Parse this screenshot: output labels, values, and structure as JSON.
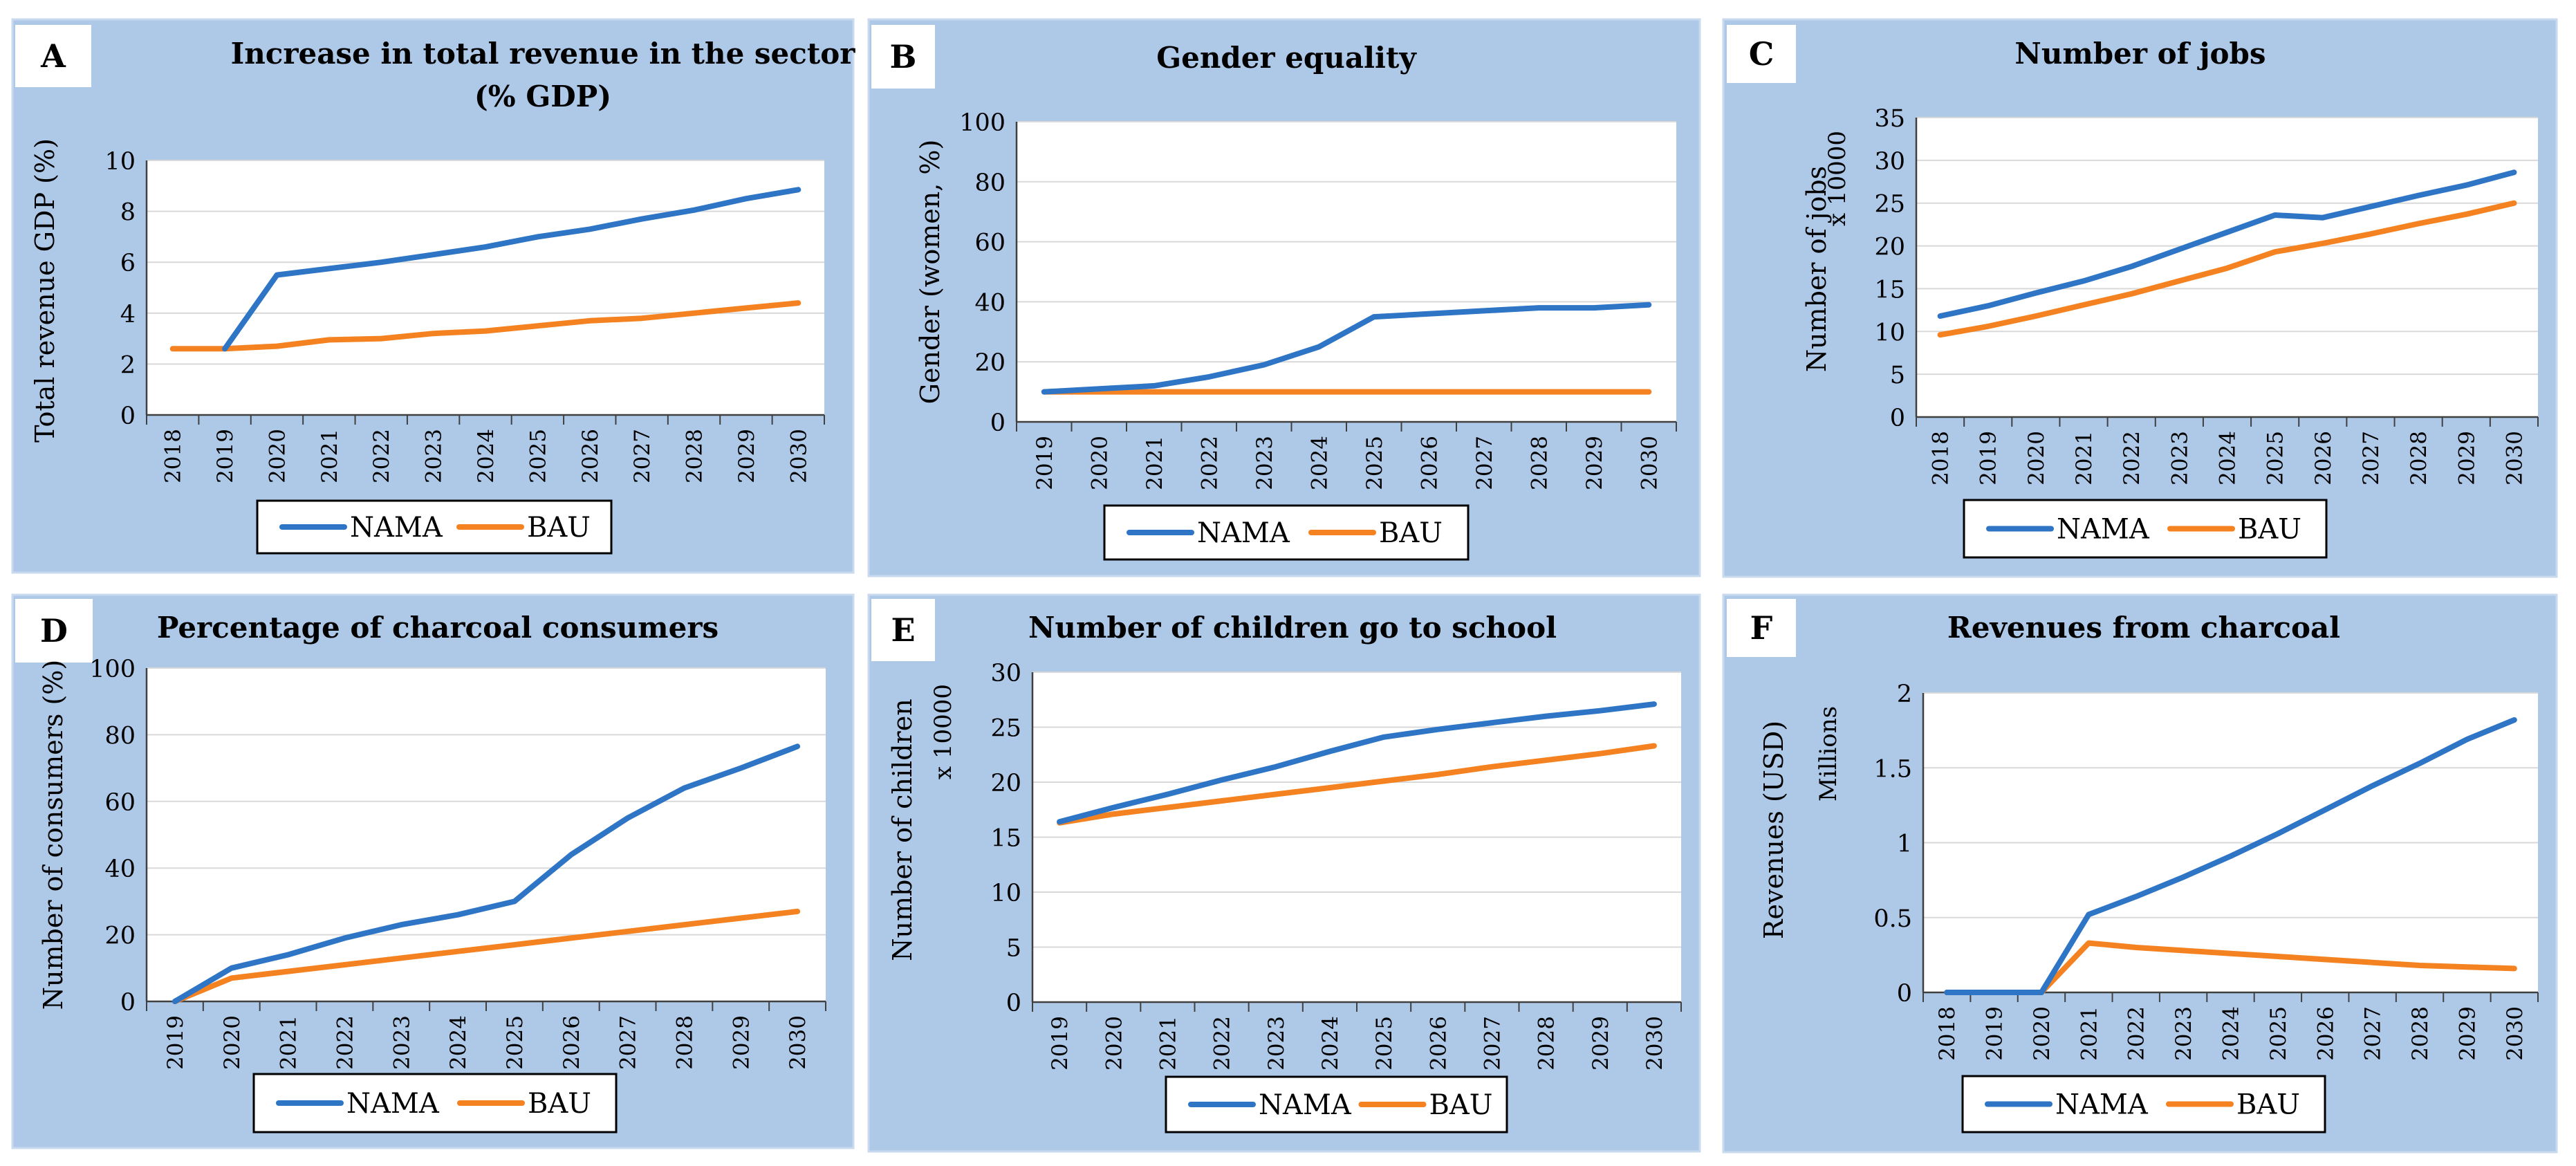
{
  "legend_labels": [
    "NAMA",
    "BAU"
  ],
  "colors": {
    "NAMA": "#2E75C6",
    "BAU": "#F58220",
    "panel_bg": "#AEC8E8",
    "plot_bg": "#FFFFFF",
    "grid": "#D9D9D9",
    "axis": "#404040",
    "text": "#000000"
  },
  "chart_data": [
    {
      "type": "line",
      "panel_letter": "A",
      "title_lines": [
        "Increase in total revenue in the sector",
        "(% GDP)"
      ],
      "ylabel": "Total revenue GDP (%)",
      "ylabel_unit": "",
      "ylim": [
        0,
        10
      ],
      "yticks": [
        0,
        2,
        4,
        6,
        8,
        10
      ],
      "x": [
        "2018",
        "2019",
        "2020",
        "2021",
        "2022",
        "2023",
        "2024",
        "2025",
        "2026",
        "2027",
        "2028",
        "2029",
        "2030"
      ],
      "series": [
        {
          "name": "NAMA",
          "values": [
            null,
            2.6,
            5.5,
            5.75,
            6.0,
            6.3,
            6.6,
            7.0,
            7.3,
            7.7,
            8.05,
            8.5,
            8.85
          ]
        },
        {
          "name": "BAU",
          "values": [
            2.6,
            2.6,
            2.7,
            2.95,
            3.0,
            3.2,
            3.3,
            3.5,
            3.7,
            3.8,
            4.0,
            4.2,
            4.4
          ]
        }
      ]
    },
    {
      "type": "line",
      "panel_letter": "B",
      "title_lines": [
        "Gender equality"
      ],
      "ylabel": "Gender (women, %)",
      "ylabel_unit": "",
      "ylim": [
        0,
        100
      ],
      "yticks": [
        0,
        20,
        40,
        60,
        80,
        100
      ],
      "x": [
        "2019",
        "2020",
        "2021",
        "2022",
        "2023",
        "2024",
        "2025",
        "2026",
        "2027",
        "2028",
        "2029",
        "2030"
      ],
      "series": [
        {
          "name": "NAMA",
          "values": [
            10,
            11,
            12,
            15,
            19,
            25,
            35,
            36,
            37,
            38,
            38,
            39
          ]
        },
        {
          "name": "BAU",
          "values": [
            10,
            10,
            10,
            10,
            10,
            10,
            10,
            10,
            10,
            10,
            10,
            10
          ]
        }
      ]
    },
    {
      "type": "line",
      "panel_letter": "C",
      "title_lines": [
        "Number of jobs"
      ],
      "ylabel": "Number of jobs",
      "ylabel_unit": "x 10000",
      "ylim": [
        0,
        35
      ],
      "yticks": [
        0,
        5,
        10,
        15,
        20,
        25,
        30,
        35
      ],
      "x": [
        "2018",
        "2019",
        "2020",
        "2021",
        "2022",
        "2023",
        "2024",
        "2025",
        "2026",
        "2027",
        "2028",
        "2029",
        "2030"
      ],
      "series": [
        {
          "name": "NAMA",
          "values": [
            11.8,
            13.0,
            14.5,
            15.9,
            17.6,
            19.6,
            21.6,
            23.6,
            23.3,
            24.6,
            25.9,
            27.1,
            28.6
          ]
        },
        {
          "name": "BAU",
          "values": [
            9.6,
            10.6,
            11.8,
            13.1,
            14.4,
            15.9,
            17.4,
            19.3,
            20.3,
            21.4,
            22.6,
            23.7,
            25.0
          ]
        }
      ]
    },
    {
      "type": "line",
      "panel_letter": "D",
      "title_lines": [
        "Percentage of charcoal consumers"
      ],
      "ylabel": "Number of consumers (%)",
      "ylabel_unit": "",
      "ylim": [
        0,
        100
      ],
      "yticks": [
        0,
        20,
        40,
        60,
        80,
        100
      ],
      "x": [
        "2019",
        "2020",
        "2021",
        "2022",
        "2023",
        "2024",
        "2025",
        "2026",
        "2027",
        "2028",
        "2029",
        "2030"
      ],
      "series": [
        {
          "name": "NAMA",
          "values": [
            0,
            10,
            14,
            19,
            23,
            26,
            30,
            44,
            55,
            64,
            70,
            76.5
          ]
        },
        {
          "name": "BAU",
          "values": [
            0,
            7,
            9,
            11,
            13,
            15,
            17,
            19,
            21,
            23,
            25,
            27
          ]
        }
      ]
    },
    {
      "type": "line",
      "panel_letter": "E",
      "title_lines": [
        "Number of children go to school"
      ],
      "ylabel": "Number of children",
      "ylabel_unit": "x 10000",
      "ylim": [
        0,
        30
      ],
      "yticks": [
        0,
        5,
        10,
        15,
        20,
        25,
        30
      ],
      "x": [
        "2019",
        "2020",
        "2021",
        "2022",
        "2023",
        "2024",
        "2025",
        "2026",
        "2027",
        "2028",
        "2029",
        "2030"
      ],
      "series": [
        {
          "name": "NAMA",
          "values": [
            16.4,
            17.7,
            18.9,
            20.2,
            21.4,
            22.8,
            24.1,
            24.8,
            25.4,
            26.0,
            26.5,
            27.1
          ]
        },
        {
          "name": "BAU",
          "values": [
            16.3,
            17.1,
            17.7,
            18.3,
            18.9,
            19.5,
            20.1,
            20.7,
            21.4,
            22.0,
            22.6,
            23.3
          ]
        }
      ]
    },
    {
      "type": "line",
      "panel_letter": "F",
      "title_lines": [
        "Revenues from charcoal"
      ],
      "ylabel": "Revenues (USD)",
      "ylabel_unit": "Millions",
      "ylim": [
        0,
        2
      ],
      "yticks": [
        0,
        0.5,
        1,
        1.5,
        2
      ],
      "x": [
        "2018",
        "2019",
        "2020",
        "2021",
        "2022",
        "2023",
        "2024",
        "2025",
        "2026",
        "2027",
        "2028",
        "2029",
        "2030"
      ],
      "series": [
        {
          "name": "NAMA",
          "values": [
            0,
            0,
            0,
            0.52,
            0.64,
            0.77,
            0.91,
            1.06,
            1.22,
            1.38,
            1.53,
            1.69,
            1.82
          ]
        },
        {
          "name": "BAU",
          "values": [
            0,
            0,
            0,
            0.33,
            0.3,
            0.28,
            0.26,
            0.24,
            0.22,
            0.2,
            0.18,
            0.17,
            0.16
          ]
        }
      ]
    }
  ]
}
